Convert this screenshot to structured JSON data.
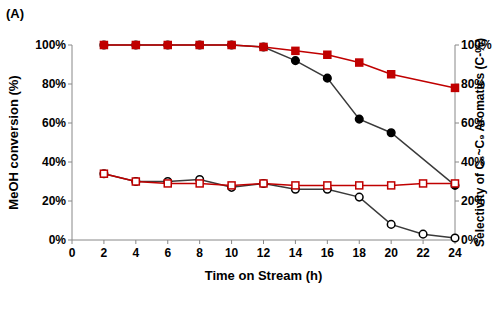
{
  "chart_data": {
    "type": "line",
    "title": "(A)",
    "x_label": "Time on Stream (h)",
    "y_label": "MeOH conversion (%)",
    "y2_label": "Selectivity of C₆~C₉ Aromatics (C-%)",
    "xlim": [
      0,
      24
    ],
    "xticks": [
      0,
      2,
      4,
      6,
      8,
      10,
      12,
      14,
      16,
      18,
      20,
      22,
      24
    ],
    "ylim": [
      0,
      100
    ],
    "yticks": [
      {
        "value": 0,
        "label": "0%"
      },
      {
        "value": 20,
        "label": "20%"
      },
      {
        "value": 40,
        "label": "40%"
      },
      {
        "value": 60,
        "label": "60%"
      },
      {
        "value": 80,
        "label": "80%"
      },
      {
        "value": 100,
        "label": "100%"
      }
    ],
    "y2lim": [
      0,
      100
    ],
    "y2ticks": [
      {
        "value": 0,
        "label": "0%"
      },
      {
        "value": 20,
        "label": "20%"
      },
      {
        "value": 40,
        "label": "40%"
      },
      {
        "value": 60,
        "label": "60%"
      },
      {
        "value": 80,
        "label": "80%"
      },
      {
        "value": 100,
        "label": "100%"
      }
    ],
    "grid": false,
    "series": [
      {
        "color": "#3a3a3a",
        "marker": "circle",
        "x": [
          2,
          4,
          6,
          8,
          10,
          12,
          14,
          16,
          18,
          20,
          24
        ],
        "values": [
          100,
          100,
          100,
          100,
          100,
          99,
          92,
          83,
          62,
          55,
          28
        ]
      },
      {
        "color": "#c00000",
        "marker": "square",
        "x": [
          2,
          4,
          6,
          8,
          10,
          12,
          14,
          16,
          18,
          20,
          24
        ],
        "values": [
          100,
          100,
          100,
          100,
          100,
          99,
          97,
          95,
          91,
          85,
          78
        ]
      },
      {
        "color": "#3a3a3a",
        "marker": "open-circle",
        "axis": "y2",
        "x": [
          2,
          4,
          6,
          8,
          10,
          12,
          14,
          16,
          18,
          20,
          22,
          24
        ],
        "values": [
          34,
          30,
          30,
          31,
          27,
          29,
          26,
          26,
          22,
          8,
          3,
          1
        ]
      },
      {
        "color": "#c00000",
        "marker": "open-square",
        "axis": "y2",
        "x": [
          2,
          4,
          6,
          8,
          10,
          12,
          14,
          16,
          18,
          20,
          22,
          24
        ],
        "values": [
          34,
          30,
          29,
          29,
          28,
          29,
          28,
          28,
          28,
          28,
          29,
          29
        ]
      }
    ]
  }
}
